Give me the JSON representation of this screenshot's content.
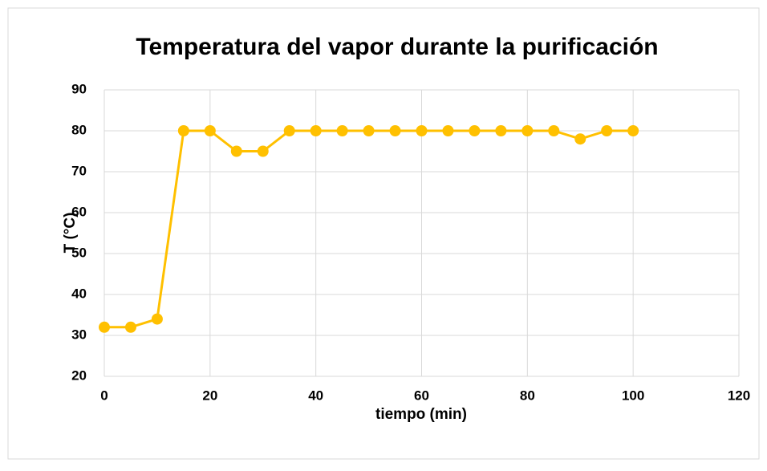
{
  "chart_data": {
    "type": "line",
    "title": "Temperatura del vapor durante la purificación",
    "x_label": "tiempo (min)",
    "y_label": "T (°C)",
    "x": [
      0,
      5,
      10,
      15,
      20,
      25,
      30,
      35,
      40,
      45,
      50,
      55,
      60,
      65,
      70,
      75,
      80,
      85,
      90,
      95,
      100
    ],
    "series": [
      {
        "name": "T",
        "color": "#FFC000",
        "values": [
          32,
          32,
          34,
          80,
          80,
          75,
          75,
          80,
          80,
          80,
          80,
          80,
          80,
          80,
          80,
          80,
          80,
          80,
          78,
          80,
          80
        ]
      }
    ],
    "xlim": [
      0,
      120
    ],
    "xticks": [
      0,
      20,
      40,
      60,
      80,
      100,
      120
    ],
    "ylim": [
      20,
      90
    ],
    "yticks": [
      20,
      30,
      40,
      50,
      60,
      70,
      80,
      90
    ],
    "grid": true,
    "legend": false
  }
}
